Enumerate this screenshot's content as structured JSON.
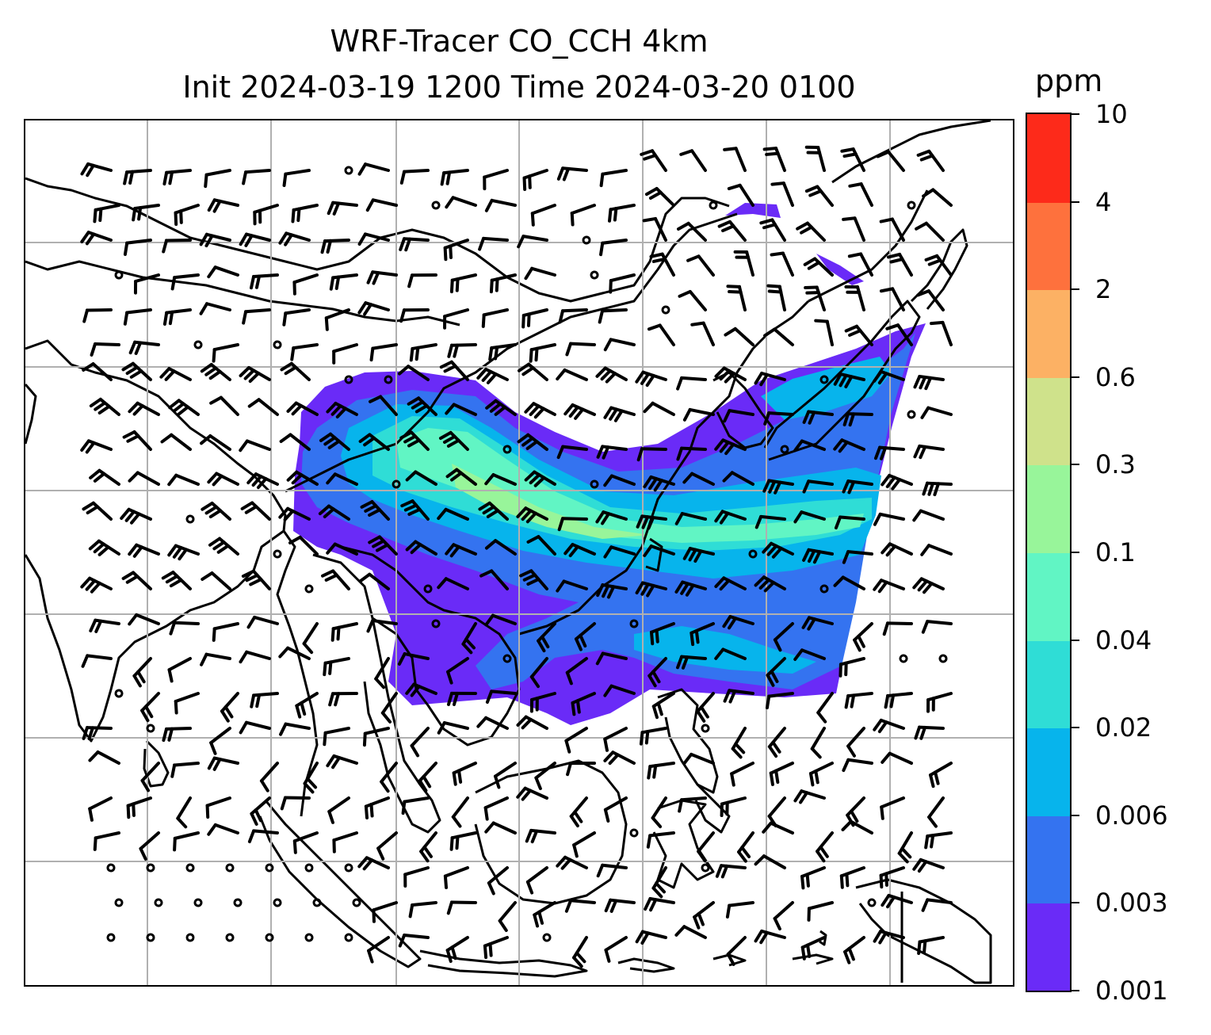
{
  "title": {
    "line1": "WRF-Tracer CO_CCH 4km",
    "line2": "Init 2024-03-19 1200 Time 2024-03-20 0100"
  },
  "colorbar": {
    "unit": "ppm",
    "ticks": [
      "0.001",
      "0.003",
      "0.006",
      "0.02",
      "0.04",
      "0.1",
      "0.3",
      "0.6",
      "2",
      "4",
      "10"
    ],
    "colors": [
      "#6a2bf7",
      "#3473f0",
      "#07b4ec",
      "#2fddd6",
      "#61f5c4",
      "#98f59a",
      "#cfe28b",
      "#fcb164",
      "#fe713d",
      "#fd2a1a"
    ]
  },
  "map": {
    "projection": "lambert conformal",
    "gridlines": true,
    "coastlines": true,
    "wind_barbs": true,
    "gridline_color": "#b0b0b0",
    "plume_levels": [
      "0.001",
      "0.003",
      "0.006",
      "0.02",
      "0.04",
      "0.1"
    ]
  }
}
